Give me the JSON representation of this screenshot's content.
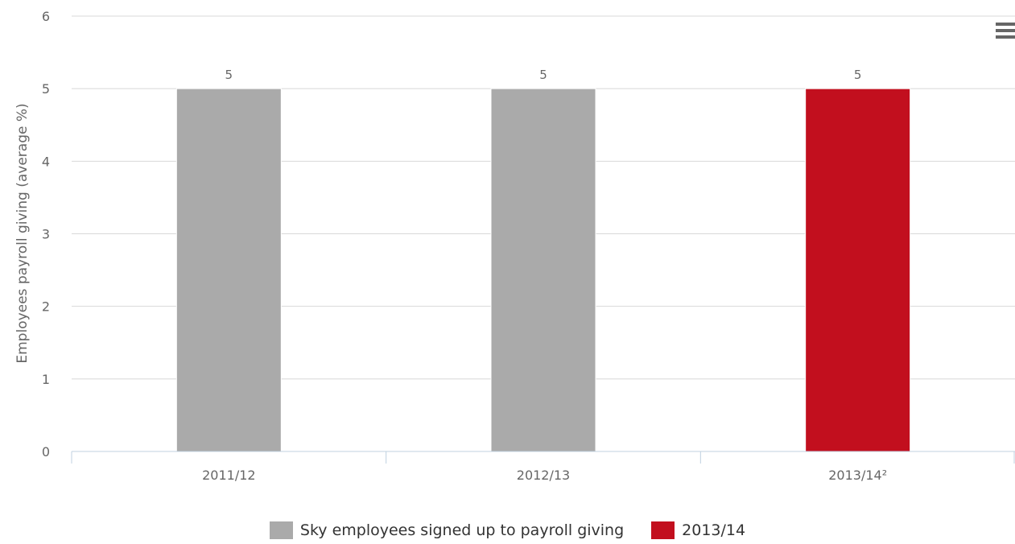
{
  "chart_data": {
    "type": "bar",
    "categories": [
      "2011/12",
      "2012/13",
      "2013/14²"
    ],
    "values": [
      5,
      5,
      5
    ],
    "bar_colors": [
      "#aaaaaa",
      "#aaaaaa",
      "#c20f1e"
    ],
    "title": "",
    "xlabel": "",
    "ylabel": "Employees payroll giving (average %)",
    "ylim": [
      0,
      6
    ],
    "yticks": [
      0,
      1,
      2,
      3,
      4,
      5,
      6
    ],
    "grid": true,
    "data_labels": [
      "5",
      "5",
      "5"
    ],
    "legend": {
      "placement": "bottom",
      "items": [
        {
          "label": "Sky employees signed up to payroll giving",
          "color": "#aaaaaa"
        },
        {
          "label": "2013/14",
          "color": "#c20f1e"
        }
      ]
    }
  },
  "menu": {
    "icon": "hamburger-menu-icon"
  }
}
